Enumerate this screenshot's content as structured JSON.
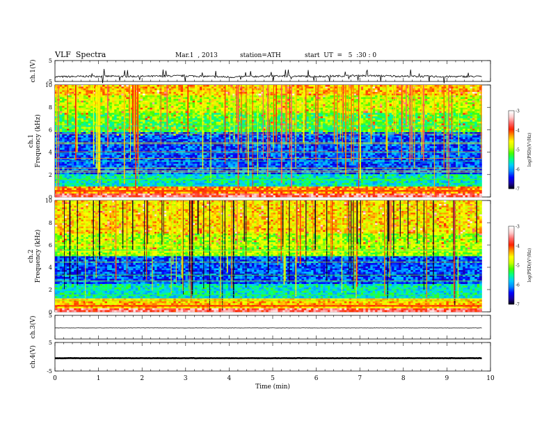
{
  "header": {
    "title": "VLF  Spectra",
    "date": "Mar.1  , 2013",
    "station": "station=ATH",
    "start_ut": "start  UT  =   5  :30 : 0"
  },
  "colors": {
    "trace": "#000000",
    "colormap": [
      "#000000",
      "#1a00a0",
      "#0000ff",
      "#0088ff",
      "#00ccff",
      "#00ff88",
      "#44ff00",
      "#ccff00",
      "#ffff00",
      "#ff9900",
      "#ff2200",
      "#ff6666",
      "#ffcccc",
      "#ffffff"
    ]
  },
  "chart_data": [
    {
      "type": "line",
      "panel": "ch1",
      "ylabel": "ch.1(V)",
      "ylim": [
        -5,
        5
      ],
      "yticks": [
        "5",
        "-5"
      ],
      "xlim": [
        0,
        10
      ],
      "x": [
        0,
        1,
        2,
        3,
        4,
        5,
        6,
        7,
        8,
        9,
        9.8
      ],
      "y": [
        -2.8,
        -2.5,
        -2.6,
        -2.3,
        -2.9,
        -2.4,
        -2.6,
        -2.2,
        -2.5,
        -2.7,
        -2.6
      ]
    },
    {
      "type": "heatmap",
      "panel": "ch1-spectrogram",
      "ylabel": "ch.1\nFrequency  (kHz)",
      "ylabel_lines": [
        "ch.1",
        "Frequency  (kHz)"
      ],
      "ylim": [
        0,
        10
      ],
      "yticks": [
        "0",
        "2",
        "4",
        "6",
        "8",
        "10"
      ],
      "xlim": [
        0,
        10
      ],
      "data_end_min": 9.8,
      "colorbar": {
        "label": "log(PSD)(V²/Hz)",
        "range": [
          -7,
          -3
        ],
        "ticks": [
          "-3",
          "-4",
          "-5",
          "-6",
          "-7"
        ]
      },
      "bands_khz": [
        {
          "from": 0,
          "to": 0.3,
          "level": -3.6
        },
        {
          "from": 0.3,
          "to": 1.0,
          "level": -4.2
        },
        {
          "from": 1.0,
          "to": 2.0,
          "level": -5.6
        },
        {
          "from": 2.0,
          "to": 5.8,
          "level": -6.2
        },
        {
          "from": 5.8,
          "to": 7.5,
          "level": -5.2
        },
        {
          "from": 7.5,
          "to": 9.0,
          "level": -4.8
        },
        {
          "from": 9.0,
          "to": 10.0,
          "level": -4.4
        }
      ]
    },
    {
      "type": "heatmap",
      "panel": "ch2-spectrogram",
      "ylabel_lines": [
        "ch.2",
        "Frequency  (kHz)"
      ],
      "ylim": [
        0,
        10
      ],
      "yticks": [
        "0",
        "2",
        "4",
        "6",
        "8",
        "10"
      ],
      "xlim": [
        0,
        10
      ],
      "data_end_min": 9.8,
      "colorbar": {
        "label": "log(PSD)(V²/Hz)",
        "range": [
          -7,
          -3
        ],
        "ticks": [
          "-3",
          "-4",
          "-5",
          "-6",
          "-7"
        ]
      },
      "bands_khz": [
        {
          "from": 0,
          "to": 0.3,
          "level": -3.6
        },
        {
          "from": 0.3,
          "to": 1.2,
          "level": -4.4
        },
        {
          "from": 1.2,
          "to": 2.5,
          "level": -5.6
        },
        {
          "from": 2.5,
          "to": 5.0,
          "level": -6.2
        },
        {
          "from": 5.0,
          "to": 7.0,
          "level": -4.9
        },
        {
          "from": 7.0,
          "to": 10.0,
          "level": -4.5
        }
      ]
    },
    {
      "type": "line",
      "panel": "ch3",
      "ylabel": "ch.3(V)",
      "ylim": [
        -5,
        5
      ],
      "yticks": [
        "5"
      ],
      "xlim": [
        0,
        10
      ],
      "x": [
        0,
        9.8
      ],
      "y": [
        -0.3,
        -0.3
      ]
    },
    {
      "type": "line",
      "panel": "ch4",
      "ylabel": "ch.4(V)",
      "ylim": [
        -5,
        5
      ],
      "yticks": [
        "5",
        "-5"
      ],
      "xlim": [
        0,
        10
      ],
      "xlabel": "Time  (min)",
      "xticks": [
        "0",
        "1",
        "2",
        "3",
        "4",
        "5",
        "6",
        "7",
        "8",
        "9",
        "10"
      ],
      "x": [
        0,
        9.8
      ],
      "y": [
        -0.5,
        -0.5
      ]
    }
  ]
}
